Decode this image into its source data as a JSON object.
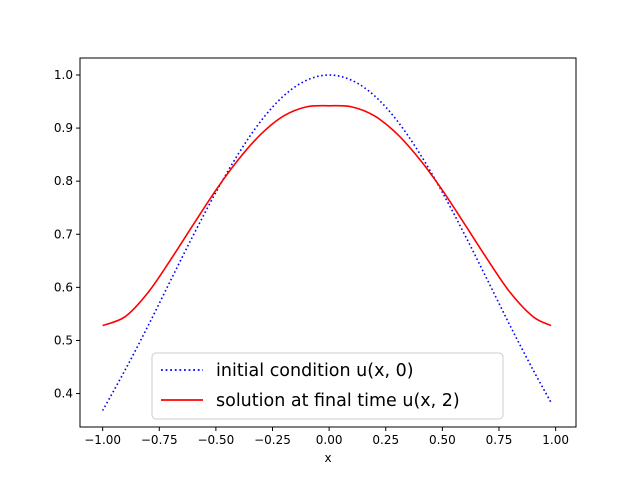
{
  "chart_data": {
    "type": "line",
    "title": "",
    "xlabel": "x",
    "ylabel": "",
    "xlim": [
      -1.1,
      1.09
    ],
    "ylim": [
      0.337,
      1.032
    ],
    "xticks": [
      -1.0,
      -0.75,
      -0.5,
      -0.25,
      0.0,
      0.25,
      0.5,
      0.75,
      1.0
    ],
    "xtick_labels": [
      "−1.00",
      "−0.75",
      "−0.50",
      "−0.25",
      "0.00",
      "0.25",
      "0.50",
      "0.75",
      "1.00"
    ],
    "yticks": [
      0.4,
      0.5,
      0.6,
      0.7,
      0.8,
      0.9,
      1.0
    ],
    "ytick_labels": [
      "0.4",
      "0.5",
      "0.6",
      "0.7",
      "0.8",
      "0.9",
      "1.0"
    ],
    "grid": false,
    "legend_position": "lower-center",
    "series": [
      {
        "name": "initial condition u(x, 0)",
        "color": "#0000ff",
        "style": "dotted",
        "x": [
          -1.0,
          -0.9,
          -0.8,
          -0.7,
          -0.6,
          -0.5,
          -0.4,
          -0.3,
          -0.2,
          -0.1,
          0.0,
          0.1,
          0.2,
          0.3,
          0.4,
          0.5,
          0.6,
          0.7,
          0.8,
          0.9,
          0.98
        ],
        "y": [
          0.368,
          0.445,
          0.527,
          0.613,
          0.698,
          0.779,
          0.852,
          0.914,
          0.961,
          0.99,
          1.0,
          0.99,
          0.961,
          0.914,
          0.852,
          0.779,
          0.698,
          0.613,
          0.527,
          0.445,
          0.383
        ]
      },
      {
        "name": "solution at final time u(x, 2)",
        "color": "#ff0000",
        "style": "solid",
        "x": [
          -1.0,
          -0.9,
          -0.8,
          -0.7,
          -0.6,
          -0.5,
          -0.4,
          -0.3,
          -0.2,
          -0.1,
          0.0,
          0.1,
          0.2,
          0.3,
          0.4,
          0.5,
          0.6,
          0.7,
          0.8,
          0.9,
          0.98
        ],
        "y": [
          0.528,
          0.545,
          0.59,
          0.652,
          0.718,
          0.783,
          0.841,
          0.889,
          0.923,
          0.94,
          0.942,
          0.94,
          0.923,
          0.889,
          0.841,
          0.783,
          0.718,
          0.652,
          0.59,
          0.545,
          0.528
        ]
      }
    ]
  }
}
